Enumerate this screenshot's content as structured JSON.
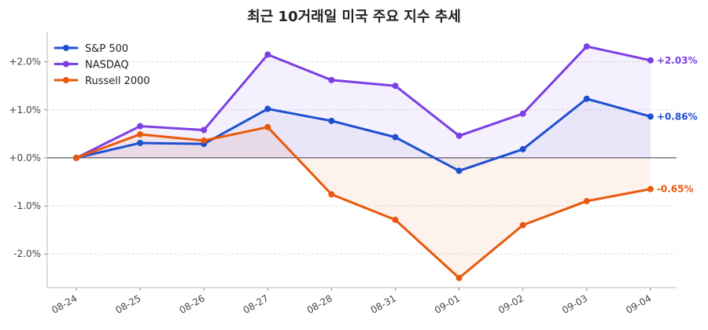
{
  "chart_data": {
    "type": "line",
    "title": "최근 10거래일 미국 주요 지수 추세",
    "xlabel": "",
    "ylabel": "",
    "categories": [
      "08-24",
      "08-25",
      "08-26",
      "08-27",
      "08-28",
      "08-31",
      "09-01",
      "09-02",
      "09-03",
      "09-04"
    ],
    "y_ticks": [
      {
        "value": 2,
        "label": "+2.0%"
      },
      {
        "value": 1,
        "label": "+1.0%"
      },
      {
        "value": 0,
        "label": "+0.0%"
      },
      {
        "value": -1,
        "label": "-1.0%"
      },
      {
        "value": -2,
        "label": "-2.0%"
      }
    ],
    "ylim": [
      -2.7,
      2.55
    ],
    "grid": true,
    "legend_position": "top-left",
    "series": [
      {
        "name": "S&P 500",
        "color": "#1f4fd1",
        "values": [
          0.0,
          0.31,
          0.29,
          1.02,
          0.77,
          0.43,
          -0.27,
          0.18,
          1.23,
          0.86
        ],
        "end_label": "+0.86%"
      },
      {
        "name": "NASDAQ",
        "color": "#7b3fe4",
        "values": [
          0.0,
          0.66,
          0.58,
          2.15,
          1.62,
          1.5,
          0.46,
          0.92,
          2.32,
          2.03
        ],
        "end_label": "+2.03%"
      },
      {
        "name": "Russell 2000",
        "color": "#e8590c",
        "values": [
          0.0,
          0.49,
          0.36,
          0.64,
          -0.76,
          -1.29,
          -2.5,
          -1.4,
          -0.9,
          -0.65
        ],
        "end_label": "-0.65%"
      }
    ]
  }
}
